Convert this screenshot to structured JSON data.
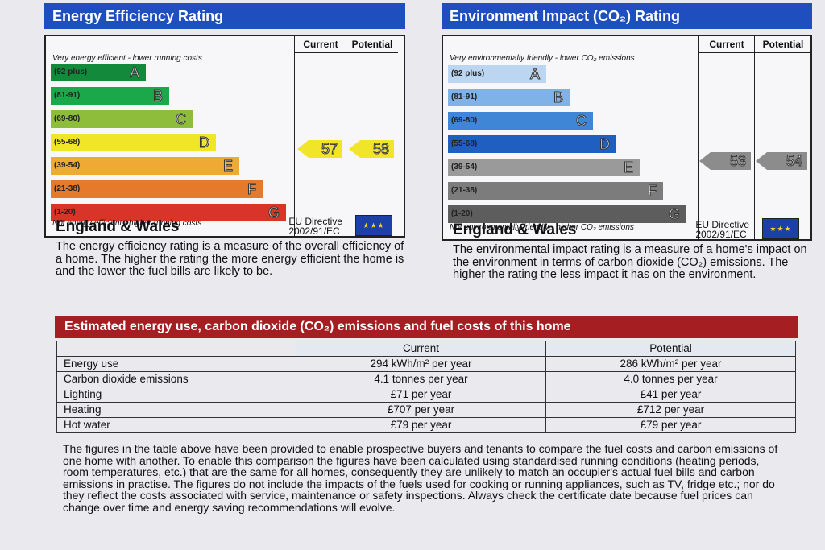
{
  "energy_efficiency": {
    "title": "Energy Efficiency Rating",
    "col_current": "Current",
    "col_potential": "Potential",
    "top_note": "Very energy efficient - lower running costs",
    "bottom_note": "Not energy efficient - higher running costs",
    "bands": [
      {
        "range": "(92 plus)",
        "letter": "A",
        "color": "#138a3b"
      },
      {
        "range": "(81-91)",
        "letter": "B",
        "color": "#1aa84a"
      },
      {
        "range": "(69-80)",
        "letter": "C",
        "color": "#8dbd3a"
      },
      {
        "range": "(55-68)",
        "letter": "D",
        "color": "#f1e52a"
      },
      {
        "range": "(39-54)",
        "letter": "E",
        "color": "#eeaa35"
      },
      {
        "range": "(21-38)",
        "letter": "F",
        "color": "#e57a2a"
      },
      {
        "range": "(1-20)",
        "letter": "G",
        "color": "#d8342a"
      }
    ],
    "current": "57",
    "potential": "58",
    "arrow_color": "#f1e52a",
    "region": "England & Wales",
    "directive": "EU Directive",
    "directive_code": "2002/91/EC",
    "description": "The energy efficiency rating is a measure of the overall efficiency of a home. The higher the rating the more energy efficient the home is and the lower the fuel bills are likely to be."
  },
  "environment_impact": {
    "title": "Environment Impact (CO₂) Rating",
    "col_current": "Current",
    "col_potential": "Potential",
    "top_note": "Very environmentally friendly - lower CO₂ emissions",
    "bottom_note": "Not environmentally friendly - higher CO₂ emissions",
    "bands": [
      {
        "range": "(92 plus)",
        "letter": "A",
        "color": "#bcd6f2"
      },
      {
        "range": "(81-91)",
        "letter": "B",
        "color": "#7fb2e6"
      },
      {
        "range": "(69-80)",
        "letter": "C",
        "color": "#3f86d6"
      },
      {
        "range": "(55-68)",
        "letter": "D",
        "color": "#1f5fc0"
      },
      {
        "range": "(39-54)",
        "letter": "E",
        "color": "#9a9a9a"
      },
      {
        "range": "(21-38)",
        "letter": "F",
        "color": "#7c7c7c"
      },
      {
        "range": "(1-20)",
        "letter": "G",
        "color": "#5d5d5d"
      }
    ],
    "current": "53",
    "potential": "54",
    "arrow_color": "#8c8c8c",
    "region": "England & Wales",
    "directive": "EU Directive",
    "directive_code": "2002/91/EC",
    "description": "The environmental impact rating is a measure of a home's impact on the environment in terms of carbon dioxide (CO₂) emissions. The higher the rating the less impact it has on the environment."
  },
  "estimates": {
    "heading": "Estimated energy use, carbon dioxide (CO₂) emissions and fuel costs of this home",
    "col_current": "Current",
    "col_potential": "Potential",
    "rows": [
      {
        "label": "Energy use",
        "current": "294 kWh/m² per year",
        "potential": "286 kWh/m² per year"
      },
      {
        "label": "Carbon dioxide emissions",
        "current": "4.1 tonnes per year",
        "potential": "4.0 tonnes per year"
      },
      {
        "label": "Lighting",
        "current": "£71 per year",
        "potential": "£41 per year"
      },
      {
        "label": "Heating",
        "current": "£707 per year",
        "potential": "£712 per year"
      },
      {
        "label": "Hot water",
        "current": "£79 per year",
        "potential": "£79 per year"
      }
    ]
  },
  "notes": "The figures in the table above have been provided to enable prospective buyers and tenants to compare the fuel costs and carbon emissions of one home with another. To enable this comparison the figures have been calculated using standardised running conditions (heating periods, room temperatures, etc.) that are the same for all homes, consequently they are unlikely to match an occupier's actual fuel bills and carbon emissions in practise. The figures do not include the impacts of the fuels used for cooking or running appliances, such as TV, fridge etc.; nor do they reflect the costs associated with service, maintenance or safety inspections. Always check the certificate date because fuel prices can change over time and energy saving recommendations will evolve."
}
